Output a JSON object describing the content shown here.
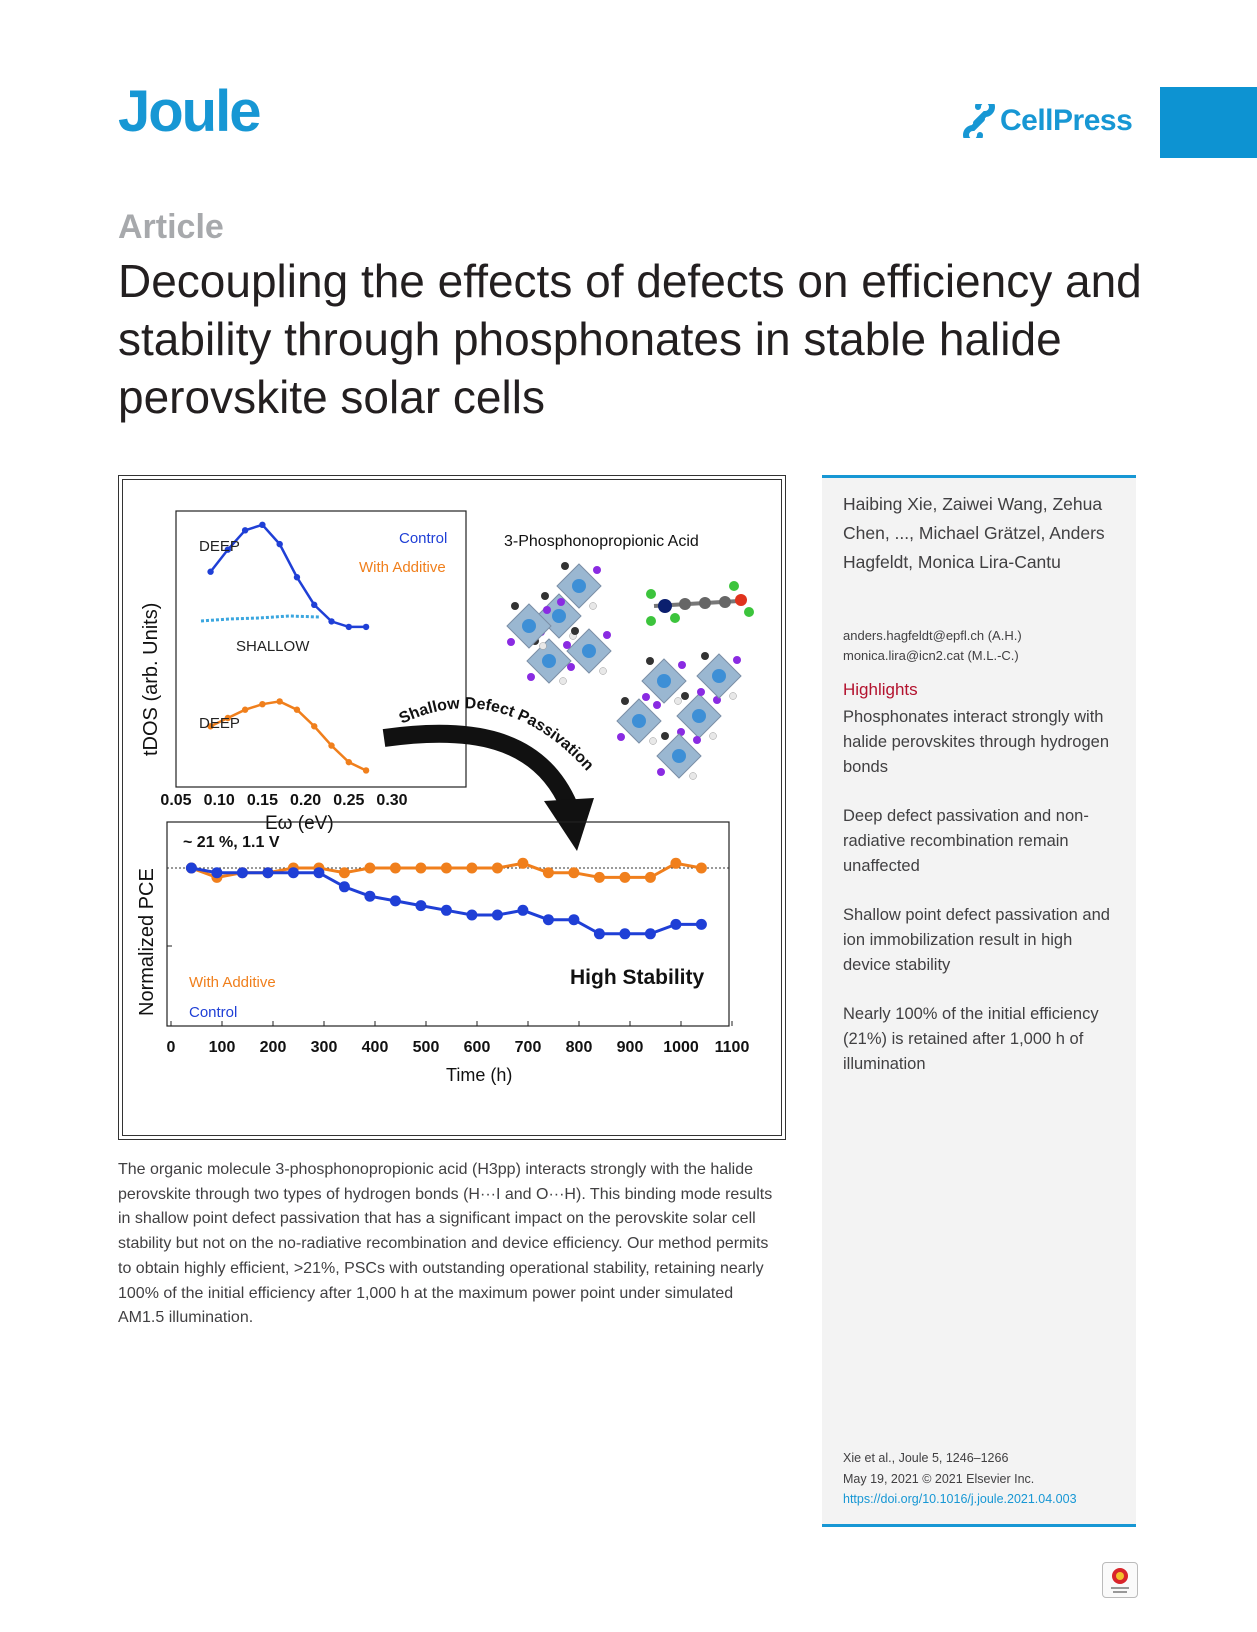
{
  "header": {
    "journal": "Joule",
    "publisher": "CellPress",
    "brand_color": "#1797d4"
  },
  "article_type": "Article",
  "title": "Decoupling the effects of defects on efficiency and stability through phosphonates in stable halide perovskite solar cells",
  "sidebar": {
    "authors": "Haibing Xie, Zaiwei Wang, Zehua Chen, ..., Michael Grätzel, Anders Hagfeldt, Monica Lira-Cantu",
    "emails": [
      "anders.hagfeldt@epfl.ch (A.H.)",
      "monica.lira@icn2.cat (M.L.-C.)"
    ],
    "highlights_heading": "Highlights",
    "highlights": [
      "Phosphonates interact strongly with halide perovskites through hydrogen bonds",
      "Deep defect passivation and non-radiative recombination remain unaffected",
      "Shallow point defect passivation and ion immobilization result in high device stability",
      "Nearly 100% of the initial efficiency (21%) is retained after 1,000 h of illumination"
    ],
    "citation_line1": "Xie et al., Joule 5, 1246–1266",
    "citation_line2": "May 19, 2021 © 2021 Elsevier Inc.",
    "doi": "https://doi.org/10.1016/j.joule.2021.04.003"
  },
  "figure": {
    "molecule_label": "3-Phosphonopropionic Acid",
    "arrow_label": "Shallow Defect Passivation",
    "stability_label": "High Stability",
    "pce_label": "~ 21 %, 1.1 V"
  },
  "chart_data": [
    {
      "type": "line",
      "ylabel": "tDOS (arb. Units)",
      "xlabel": "Eω (eV)",
      "xticks": [
        "0.05",
        "0.10",
        "0.15",
        "0.20",
        "0.25",
        "0.30"
      ],
      "xlim": [
        0.05,
        0.3
      ],
      "legend": [
        "Control",
        "With Additive"
      ],
      "annotations": [
        "DEEP",
        "SHALLOW",
        "DEEP"
      ],
      "series": [
        {
          "name": "Control",
          "color": "#1f3fd6",
          "x": [
            0.09,
            0.11,
            0.13,
            0.15,
            0.17,
            0.19,
            0.21,
            0.23,
            0.25,
            0.27
          ],
          "y": [
            0.78,
            0.86,
            0.93,
            0.95,
            0.88,
            0.76,
            0.66,
            0.6,
            0.58,
            0.58
          ]
        },
        {
          "name": "With Additive",
          "color": "#f07f1c",
          "x": [
            0.09,
            0.11,
            0.13,
            0.15,
            0.17,
            0.19,
            0.21,
            0.23,
            0.25,
            0.27
          ],
          "y": [
            0.22,
            0.25,
            0.28,
            0.3,
            0.31,
            0.28,
            0.22,
            0.15,
            0.09,
            0.06
          ]
        }
      ]
    },
    {
      "type": "line",
      "ylabel": "Normalized PCE",
      "xlabel": "Time  (h)",
      "xticks": [
        "0",
        "100",
        "200",
        "300",
        "400",
        "500",
        "600",
        "700",
        "800",
        "900",
        "1000",
        "1100"
      ],
      "xlim": [
        0,
        1100
      ],
      "legend": [
        "With Additive",
        "Control"
      ],
      "series": [
        {
          "name": "With Additive",
          "color": "#f07f1c",
          "x": [
            40,
            90,
            140,
            190,
            240,
            290,
            340,
            390,
            440,
            490,
            540,
            590,
            640,
            690,
            740,
            790,
            840,
            890,
            940,
            990,
            1040
          ],
          "y": [
            1.0,
            0.98,
            0.99,
            0.99,
            1.0,
            1.0,
            0.99,
            1.0,
            1.0,
            1.0,
            1.0,
            1.0,
            1.0,
            1.01,
            0.99,
            0.99,
            0.98,
            0.98,
            0.98,
            1.01,
            1.0
          ]
        },
        {
          "name": "Control",
          "color": "#1f3fd6",
          "x": [
            40,
            90,
            140,
            190,
            240,
            290,
            340,
            390,
            440,
            490,
            540,
            590,
            640,
            690,
            740,
            790,
            840,
            890,
            940,
            990,
            1040
          ],
          "y": [
            1.0,
            0.99,
            0.99,
            0.99,
            0.99,
            0.99,
            0.96,
            0.94,
            0.93,
            0.92,
            0.91,
            0.9,
            0.9,
            0.91,
            0.89,
            0.89,
            0.86,
            0.86,
            0.86,
            0.88,
            0.88
          ]
        }
      ]
    }
  ],
  "summary": "The organic molecule 3-phosphonopropionic acid (H3pp) interacts strongly with the halide perovskite through two types of hydrogen bonds (H···I and O···H). This binding mode results in shallow point defect passivation that has a significant impact on the perovskite solar cell stability but not on the no-radiative recombination and device efficiency. Our method permits to obtain highly efficient, >21%, PSCs with outstanding operational stability, retaining nearly 100% of the initial efficiency after 1,000 h at the maximum power point under simulated AM1.5 illumination."
}
